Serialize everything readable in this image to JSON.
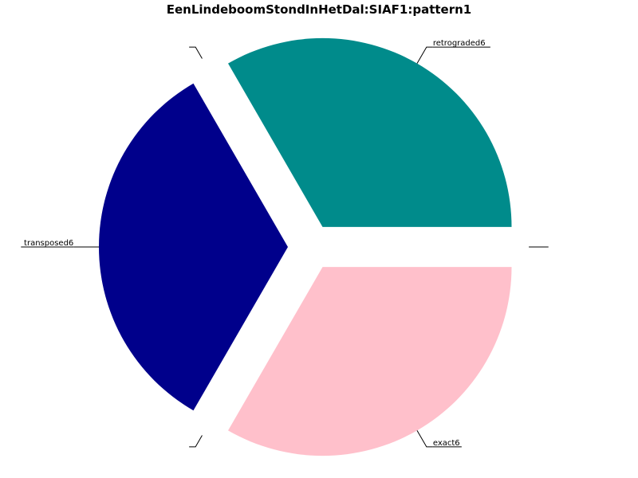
{
  "chart_data": {
    "type": "pie",
    "title": "EenLindeboomStondInHetDal:SIAF1:pattern1",
    "start_angle_deg": 0,
    "direction": "counterclockwise",
    "slices": [
      {
        "label": "",
        "value": 0,
        "color": "#ffffff"
      },
      {
        "label": "retrograded6",
        "value": 1,
        "color": "#008b8b"
      },
      {
        "label": "",
        "value": 0,
        "color": "#ffffff"
      },
      {
        "label": "transposed6",
        "value": 1,
        "color": "#00008b"
      },
      {
        "label": "",
        "value": 0,
        "color": "#ffffff"
      },
      {
        "label": "exact6",
        "value": 1,
        "color": "#ffc0cb"
      }
    ],
    "legend": false
  }
}
